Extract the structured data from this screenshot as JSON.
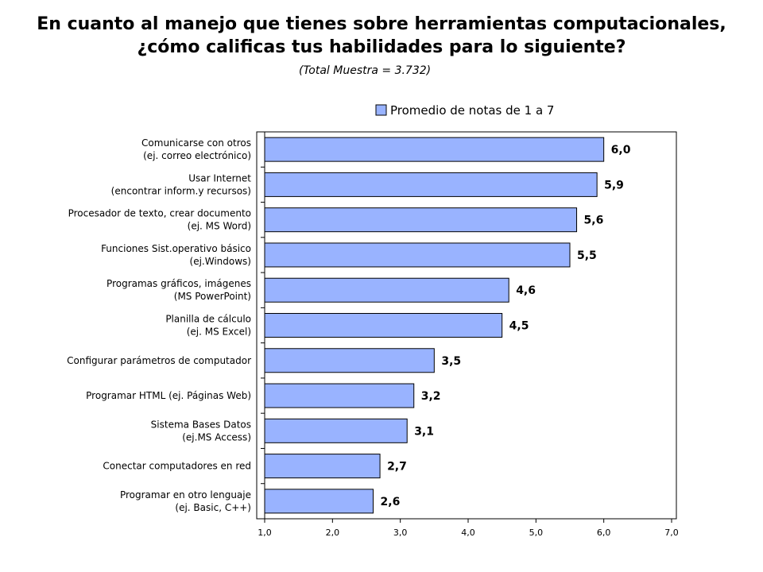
{
  "chart_data": {
    "type": "bar",
    "orientation": "horizontal",
    "title_lines": [
      "En cuanto al manejo que tienes sobre herramientas computacionales,",
      "¿cómo calificas tus habilidades para lo siguiente?"
    ],
    "subtitle": "(Total Muestra = 3.732)",
    "legend_position": "top",
    "categories": [
      [
        "Comunicarse con otros",
        "(ej. correo electrónico)"
      ],
      [
        "Usar Internet",
        "(encontrar inform.y recursos)"
      ],
      [
        "Procesador de texto, crear documento",
        "(ej. MS Word)"
      ],
      [
        "Funciones Sist.operativo básico",
        "(ej.Windows)"
      ],
      [
        "Programas gráficos, imágenes",
        "(MS PowerPoint)"
      ],
      [
        "Planilla de cálculo",
        "(ej. MS Excel)"
      ],
      [
        "Configurar parámetros de computador"
      ],
      [
        "Programar HTML (ej. Páginas Web)"
      ],
      [
        "Sistema Bases Datos",
        "(ej.MS Access)"
      ],
      [
        "Conectar computadores en red"
      ],
      [
        "Programar en otro lenguaje",
        "(ej. Basic, C++)"
      ]
    ],
    "series": [
      {
        "name": "Promedio de notas de 1 a 7",
        "color": "#99b3ff",
        "values": [
          6.0,
          5.9,
          5.6,
          5.5,
          4.6,
          4.5,
          3.5,
          3.2,
          3.1,
          2.7,
          2.6
        ],
        "value_labels": [
          "6,0",
          "5,9",
          "5,6",
          "5,5",
          "4,6",
          "4,5",
          "3,5",
          "3,2",
          "3,1",
          "2,7",
          "2,6"
        ]
      }
    ],
    "xlim": [
      1.0,
      7.0
    ],
    "x_ticks": [
      1.0,
      2.0,
      3.0,
      4.0,
      5.0,
      6.0,
      7.0
    ],
    "x_tick_labels": [
      "1,0",
      "2,0",
      "3,0",
      "4,0",
      "5,0",
      "6,0",
      "7,0"
    ],
    "grid": false
  }
}
